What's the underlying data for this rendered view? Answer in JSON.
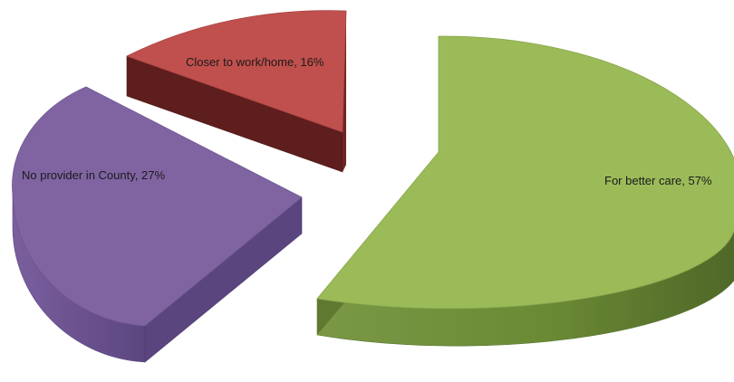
{
  "chart_data": {
    "type": "pie",
    "style": "3d-exploded",
    "title": "",
    "legend": "none",
    "slices": [
      {
        "label": "For better care",
        "value": 57,
        "display": "For better care, 57%",
        "color": "#9BBB59"
      },
      {
        "label": "No provider in County",
        "value": 27,
        "display": "No provider in County, 27%",
        "color": "#8064A2"
      },
      {
        "label": "Closer to work/home",
        "value": 16,
        "display": "Closer to work/home, 16%",
        "color": "#C0504D"
      }
    ]
  }
}
